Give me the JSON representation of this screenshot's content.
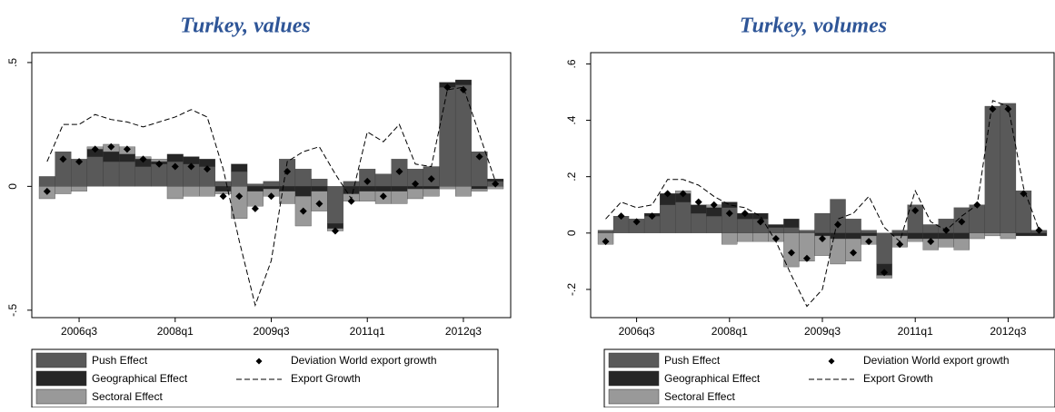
{
  "chart_data": [
    {
      "type": "bar",
      "title": "Turkey, values",
      "stacked": true,
      "legend": "bottom",
      "categories": [
        null,
        null,
        "2006q3",
        null,
        null,
        null,
        null,
        null,
        "2008q1",
        null,
        null,
        null,
        null,
        null,
        "2009q3",
        null,
        null,
        null,
        null,
        null,
        "2011q1",
        null,
        null,
        null,
        null,
        null,
        "2012q3",
        null,
        null
      ],
      "ylim": [
        -0.53,
        0.54
      ],
      "yticks": [
        {
          "value": 0.5,
          "label": ".5"
        },
        0,
        {
          "value": -0.5,
          "label": "-.5"
        }
      ],
      "series": [
        {
          "name": "Push Effect",
          "type": "bar",
          "color": "#595959",
          "values": [
            0.04,
            0.14,
            0.11,
            0.12,
            0.1,
            0.1,
            0.08,
            0.09,
            0.1,
            0.09,
            0.08,
            0.02,
            0.06,
            0.01,
            0.02,
            0.11,
            0.07,
            0.03,
            -0.15,
            0.02,
            0.07,
            0.05,
            0.11,
            0.07,
            0.08,
            0.4,
            0.41,
            0.14,
            0.02
          ]
        },
        {
          "name": "Geographical Effect",
          "type": "bar",
          "color": "#262626",
          "values": [
            0,
            0,
            0,
            0.03,
            0.04,
            0.03,
            0.03,
            0.01,
            0.03,
            0.03,
            0.03,
            -0.02,
            0.03,
            -0.02,
            -0.01,
            -0.02,
            -0.04,
            -0.02,
            -0.02,
            -0.03,
            -0.02,
            -0.02,
            -0.02,
            -0.01,
            -0.01,
            0.02,
            0.02,
            -0.01,
            0.01
          ]
        },
        {
          "name": "Sectoral Effect",
          "type": "bar",
          "color": "#999999",
          "values": [
            -0.05,
            -0.03,
            -0.02,
            0.01,
            0.03,
            0.03,
            0.01,
            0.01,
            -0.05,
            -0.04,
            -0.04,
            -0.01,
            -0.13,
            -0.06,
            -0.03,
            -0.05,
            -0.12,
            -0.08,
            -0.01,
            -0.03,
            -0.04,
            -0.05,
            -0.05,
            -0.04,
            -0.03,
            -0.01,
            -0.04,
            -0.01,
            -0.01
          ]
        },
        {
          "name": "Deviation World export growth",
          "type": "scatter",
          "color": "#000000",
          "values": [
            -0.02,
            0.11,
            0.1,
            0.15,
            0.16,
            0.15,
            0.11,
            0.09,
            0.08,
            0.08,
            0.07,
            -0.04,
            -0.04,
            -0.09,
            -0.04,
            0.06,
            -0.1,
            -0.07,
            -0.18,
            -0.06,
            0.02,
            -0.04,
            0.06,
            0.01,
            0.03,
            0.4,
            0.39,
            0.12,
            0.01
          ]
        },
        {
          "name": "Export Growth",
          "type": "line",
          "color": "#000000",
          "values": [
            0.1,
            0.25,
            0.25,
            0.29,
            0.27,
            0.26,
            0.24,
            0.26,
            0.28,
            0.31,
            0.28,
            0.07,
            -0.22,
            -0.48,
            -0.3,
            0.1,
            0.14,
            0.16,
            0.05,
            -0.05,
            0.22,
            0.18,
            0.25,
            0.09,
            0.08,
            0.39,
            0.4,
            0.21,
            0.02
          ]
        }
      ]
    },
    {
      "type": "bar",
      "title": "Turkey, volumes",
      "stacked": true,
      "legend": "bottom",
      "categories": [
        null,
        null,
        "2006q3",
        null,
        null,
        null,
        null,
        null,
        "2008q1",
        null,
        null,
        null,
        null,
        null,
        "2009q3",
        null,
        null,
        null,
        null,
        null,
        "2011q1",
        null,
        null,
        null,
        null,
        null,
        "2012q3",
        null,
        null
      ],
      "ylim": [
        -0.3,
        0.64
      ],
      "yticks": [
        {
          "value": 0.6,
          "label": ".6"
        },
        {
          "value": 0.4,
          "label": ".4"
        },
        {
          "value": 0.2,
          "label": ".2"
        },
        0,
        {
          "value": -0.2,
          "label": "-.2"
        }
      ],
      "series": [
        {
          "name": "Push Effect",
          "type": "bar",
          "color": "#595959",
          "values": [
            0.01,
            0.06,
            0.05,
            0.06,
            0.1,
            0.11,
            0.07,
            0.06,
            0.09,
            0.05,
            0.05,
            0.02,
            0.02,
            0.01,
            0.07,
            0.12,
            0.05,
            0.01,
            -0.11,
            0.01,
            0.1,
            0.03,
            0.05,
            0.09,
            0.1,
            0.45,
            0.46,
            0.15,
            0.01
          ]
        },
        {
          "name": "Geographical Effect",
          "type": "bar",
          "color": "#262626",
          "values": [
            0,
            0,
            0,
            0.01,
            0.04,
            0.03,
            0.03,
            0.03,
            0.02,
            0.02,
            0.02,
            0.01,
            0.03,
            0,
            -0.01,
            -0.02,
            -0.02,
            -0.01,
            -0.04,
            -0.01,
            -0.02,
            -0.02,
            -0.02,
            -0.02,
            0,
            0,
            0,
            -0.01,
            -0.01
          ]
        },
        {
          "name": "Sectoral Effect",
          "type": "bar",
          "color": "#999999",
          "values": [
            -0.04,
            0,
            0,
            0,
            0,
            0.01,
            0,
            0.01,
            -0.04,
            -0.03,
            -0.03,
            -0.03,
            -0.12,
            -0.1,
            -0.07,
            -0.09,
            -0.08,
            -0.03,
            -0.01,
            -0.04,
            -0.01,
            -0.04,
            -0.03,
            -0.04,
            -0.02,
            -0.01,
            -0.02,
            0,
            0
          ]
        },
        {
          "name": "Deviation World export growth",
          "type": "scatter",
          "color": "#000000",
          "values": [
            -0.03,
            0.06,
            0.04,
            0.06,
            0.14,
            0.14,
            0.11,
            0.1,
            0.07,
            0.07,
            0.04,
            -0.02,
            -0.07,
            -0.09,
            -0.02,
            0.03,
            -0.07,
            -0.03,
            -0.14,
            -0.04,
            0.08,
            -0.03,
            0.01,
            0.04,
            0.1,
            0.44,
            0.44,
            0.14,
            0.01
          ]
        },
        {
          "name": "Export Growth",
          "type": "line",
          "color": "#000000",
          "values": [
            0.05,
            0.11,
            0.09,
            0.1,
            0.19,
            0.19,
            0.17,
            0.13,
            0.1,
            0.09,
            0.06,
            -0.03,
            -0.15,
            -0.26,
            -0.2,
            0.05,
            0.07,
            0.13,
            0.02,
            -0.03,
            0.15,
            0.04,
            0.01,
            0.06,
            0.1,
            0.47,
            0.45,
            0.16,
            0.01
          ]
        }
      ]
    }
  ]
}
